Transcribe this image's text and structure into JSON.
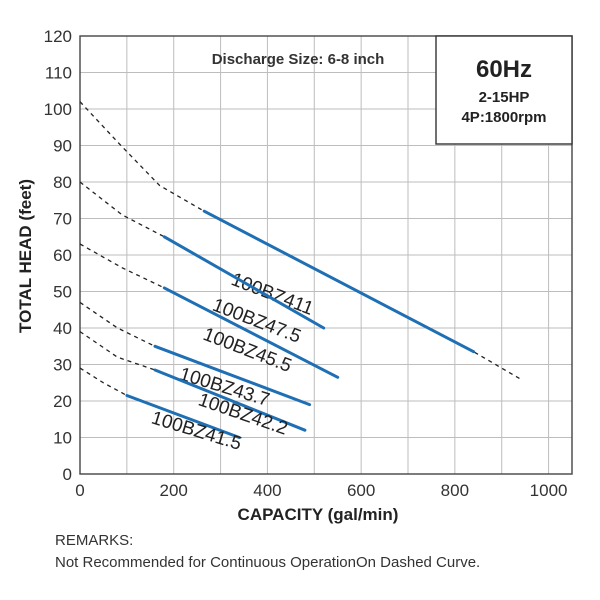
{
  "chart_data": {
    "type": "line",
    "title": "Discharge Size: 6-8 inch",
    "info_box": {
      "frequency": "60Hz",
      "power": "2-15HP",
      "poles_speed": "4P:1800rpm"
    },
    "xlabel": "CAPACITY (gal/min)",
    "ylabel": "TOTAL HEAD (feet)",
    "xlim": [
      0,
      1050
    ],
    "ylim": [
      0,
      120
    ],
    "x_ticks": [
      0,
      200,
      400,
      600,
      800,
      1000
    ],
    "y_ticks": [
      0,
      10,
      20,
      30,
      40,
      50,
      60,
      70,
      80,
      90,
      100,
      110,
      120
    ],
    "grid": true,
    "series": [
      {
        "name": "100BZ411",
        "color": "#1f6fb5",
        "recommended": [
          [
            265,
            72
          ],
          [
            840,
            33.5
          ]
        ],
        "dashed": [
          [
            0,
            102
          ],
          [
            80,
            91
          ],
          [
            170,
            79
          ],
          [
            265,
            72
          ],
          [
            840,
            33.5
          ],
          [
            940,
            26
          ]
        ],
        "label_at": [
          320,
          52
        ],
        "label_angle": 21
      },
      {
        "name": "100BZ47.5",
        "color": "#1f6fb5",
        "recommended": [
          [
            180,
            65
          ],
          [
            520,
            40
          ]
        ],
        "dashed": [
          [
            0,
            80
          ],
          [
            90,
            71
          ],
          [
            180,
            65
          ]
        ],
        "label_at": [
          280,
          45
        ],
        "label_angle": 21
      },
      {
        "name": "100BZ45.5",
        "color": "#1f6fb5",
        "recommended": [
          [
            180,
            51
          ],
          [
            550,
            26.5
          ]
        ],
        "dashed": [
          [
            0,
            63
          ],
          [
            90,
            56.5
          ],
          [
            180,
            51
          ]
        ],
        "label_at": [
          260,
          37
        ],
        "label_angle": 21
      },
      {
        "name": "100BZ43.7",
        "color": "#1f6fb5",
        "recommended": [
          [
            160,
            35
          ],
          [
            490,
            19
          ]
        ],
        "dashed": [
          [
            0,
            47
          ],
          [
            80,
            40
          ],
          [
            160,
            35
          ]
        ],
        "label_at": [
          210,
          26
        ],
        "label_angle": 17
      },
      {
        "name": "100BZ42.2",
        "color": "#1f6fb5",
        "recommended": [
          [
            160,
            28.5
          ],
          [
            480,
            12
          ]
        ],
        "dashed": [
          [
            0,
            39
          ],
          [
            80,
            32
          ],
          [
            160,
            28.5
          ]
        ],
        "label_at": [
          250,
          19
        ],
        "label_angle": 19
      },
      {
        "name": "100BZ41.5",
        "color": "#1f6fb5",
        "recommended": [
          [
            100,
            21.5
          ],
          [
            340,
            10
          ]
        ],
        "dashed": [
          [
            0,
            29
          ],
          [
            50,
            25
          ],
          [
            100,
            21.5
          ]
        ],
        "label_at": [
          150,
          14
        ],
        "label_angle": 17
      }
    ]
  },
  "remarks": {
    "heading": "REMARKS:",
    "text": "Not Recommended for Continuous OperationOn Dashed Curve."
  }
}
